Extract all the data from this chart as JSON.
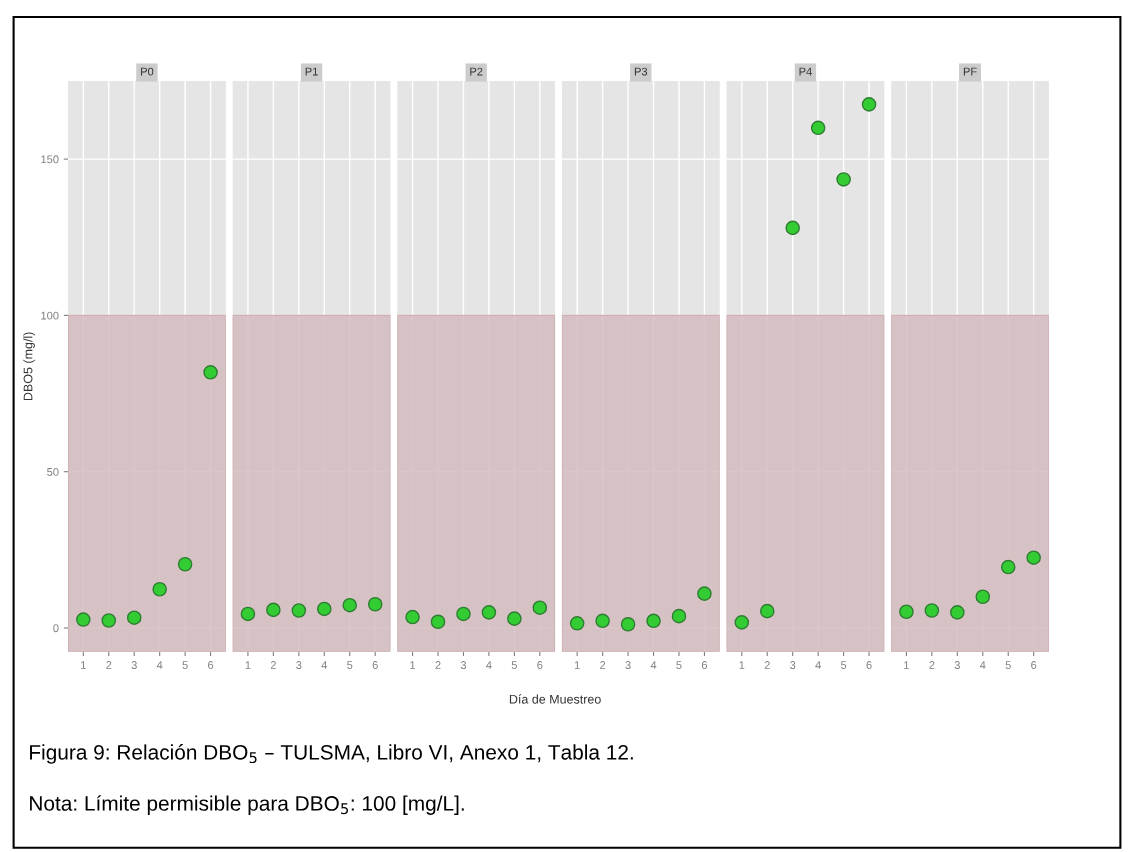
{
  "chart_data": [
    {
      "type": "scatter",
      "title": "P0",
      "ylabel": "DBO5 (mg/l)",
      "categories": [
        "1",
        "2",
        "3",
        "4",
        "5",
        "6"
      ],
      "series": [
        {
          "color": "#33cc33",
          "values": [
            2.7,
            2.4,
            3.3,
            12.4,
            20.4,
            81.8
          ]
        }
      ],
      "ylim": [
        -7.6,
        175
      ],
      "yticks": [
        0,
        50,
        100,
        150
      ],
      "bands": [
        {
          "axis": "y",
          "from": -7.6,
          "to": 100,
          "color": "#d4bcbf"
        }
      ],
      "grid": true,
      "marker": "circle",
      "annotations": [
        "Figura 9: Relación DBO$_{5}$ – TULSMA, Libro VI, Anexo 1, Tabla 12.",
        "Nota: Límite permisible para DBO$_{5}$: 100 [mg/L]."
      ]
    },
    {
      "type": "scatter",
      "title": "P1",
      "categories": [
        "1",
        "2",
        "3",
        "4",
        "5",
        "6"
      ],
      "series": [
        {
          "color": "#33cc33",
          "values": [
            4.5,
            5.8,
            5.6,
            6.1,
            7.3,
            7.6
          ]
        }
      ],
      "ylim": [
        -7.6,
        175
      ],
      "yticks": [
        0,
        50,
        100,
        150
      ],
      "bands": [
        {
          "axis": "y",
          "from": -7.6,
          "to": 100,
          "color": "#d4bcbf"
        }
      ],
      "grid": true,
      "marker": "circle",
      "tick_labels": "x"
    },
    {
      "type": "scatter",
      "title": "P2",
      "xlabel": "Día de Muestreo",
      "categories": [
        "1",
        "2",
        "3",
        "4",
        "5",
        "6"
      ],
      "series": [
        {
          "color": "#33cc33",
          "values": [
            3.5,
            2.0,
            4.5,
            5.0,
            3.0,
            6.5
          ]
        }
      ],
      "ylim": [
        -7.6,
        175
      ],
      "yticks": [
        0,
        50,
        100,
        150
      ],
      "bands": [
        {
          "axis": "y",
          "from": -7.6,
          "to": 100,
          "color": "#d4bcbf"
        }
      ],
      "grid": true,
      "marker": "circle",
      "tick_labels": "x"
    },
    {
      "type": "scatter",
      "title": "P3",
      "categories": [
        "1",
        "2",
        "3",
        "4",
        "5",
        "6"
      ],
      "series": [
        {
          "color": "#33cc33",
          "values": [
            1.5,
            2.3,
            1.2,
            2.3,
            3.8,
            11.0
          ]
        }
      ],
      "ylim": [
        -7.6,
        175
      ],
      "yticks": [
        0,
        50,
        100,
        150
      ],
      "bands": [
        {
          "axis": "y",
          "from": -7.6,
          "to": 100,
          "color": "#d4bcbf"
        }
      ],
      "grid": true,
      "marker": "circle",
      "tick_labels": "x"
    },
    {
      "type": "scatter",
      "title": "P4",
      "categories": [
        "1",
        "2",
        "3",
        "4",
        "5",
        "6"
      ],
      "series": [
        {
          "color": "#33cc33",
          "values": [
            1.8,
            5.4,
            128,
            160,
            143.5,
            167.5
          ]
        }
      ],
      "ylim": [
        -7.6,
        175
      ],
      "yticks": [
        0,
        50,
        100,
        150
      ],
      "bands": [
        {
          "axis": "y",
          "from": -7.6,
          "to": 100,
          "color": "#d4bcbf"
        }
      ],
      "grid": true,
      "marker": "circle",
      "tick_labels": "x"
    },
    {
      "type": "scatter",
      "title": "PF",
      "categories": [
        "1",
        "2",
        "3",
        "4",
        "5",
        "6"
      ],
      "series": [
        {
          "color": "#33cc33",
          "values": [
            5.2,
            5.6,
            5.0,
            10.0,
            19.5,
            22.5
          ]
        }
      ],
      "ylim": [
        -7.6,
        175
      ],
      "yticks": [
        0,
        50,
        100,
        150
      ],
      "bands": [
        {
          "axis": "y",
          "from": -7.6,
          "to": 100,
          "color": "#d4bcbf"
        }
      ],
      "grid": true,
      "marker": "circle",
      "tick_labels": "x"
    }
  ]
}
